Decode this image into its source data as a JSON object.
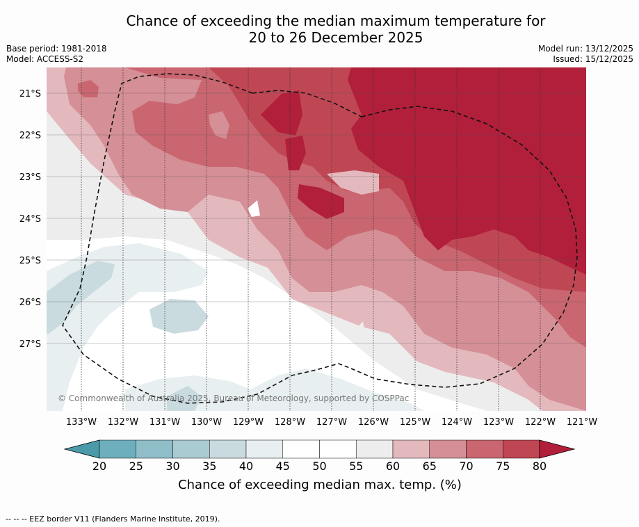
{
  "title_line1": "Chance of exceeding the median maximum temperature for",
  "title_line2": "20 to 26 December 2025",
  "base_period": "Base period: 1981-2018",
  "model": "Model: ACCESS-S2",
  "model_run": "Model run: 13/12/2025",
  "issued": "Issued: 15/12/2025",
  "copyright": "© Commonwealth of Australia 2025, Bureau of Meteorology, supported by COSPPac",
  "lat_labels": [
    "21°S",
    "22°S",
    "23°S",
    "24°S",
    "25°S",
    "26°S",
    "27°S"
  ],
  "lon_labels": [
    "133°W",
    "132°W",
    "131°W",
    "130°W",
    "129°W",
    "128°W",
    "127°W",
    "126°W",
    "125°W",
    "124°W",
    "123°W",
    "122°W",
    "121°W"
  ],
  "colorbar": {
    "ticks": [
      "20",
      "25",
      "30",
      "35",
      "40",
      "45",
      "50",
      "55",
      "60",
      "65",
      "70",
      "75",
      "80"
    ],
    "colors": [
      "#6eafbd",
      "#8fbec8",
      "#abcbd2",
      "#c9dbdf",
      "#e8eff1",
      "#ffffff",
      "#ffffff",
      "#eeeded",
      "#e3b9be",
      "#d58f96",
      "#c96670",
      "#bf4754"
    ],
    "low_color": "#4b9aaa",
    "high_color": "#b11f3b",
    "label": "Chance of exceeding median max. temp. (%)"
  },
  "footer": "-- -- -- EEZ border V11 (Flanders Marine Institute, 2019)."
}
